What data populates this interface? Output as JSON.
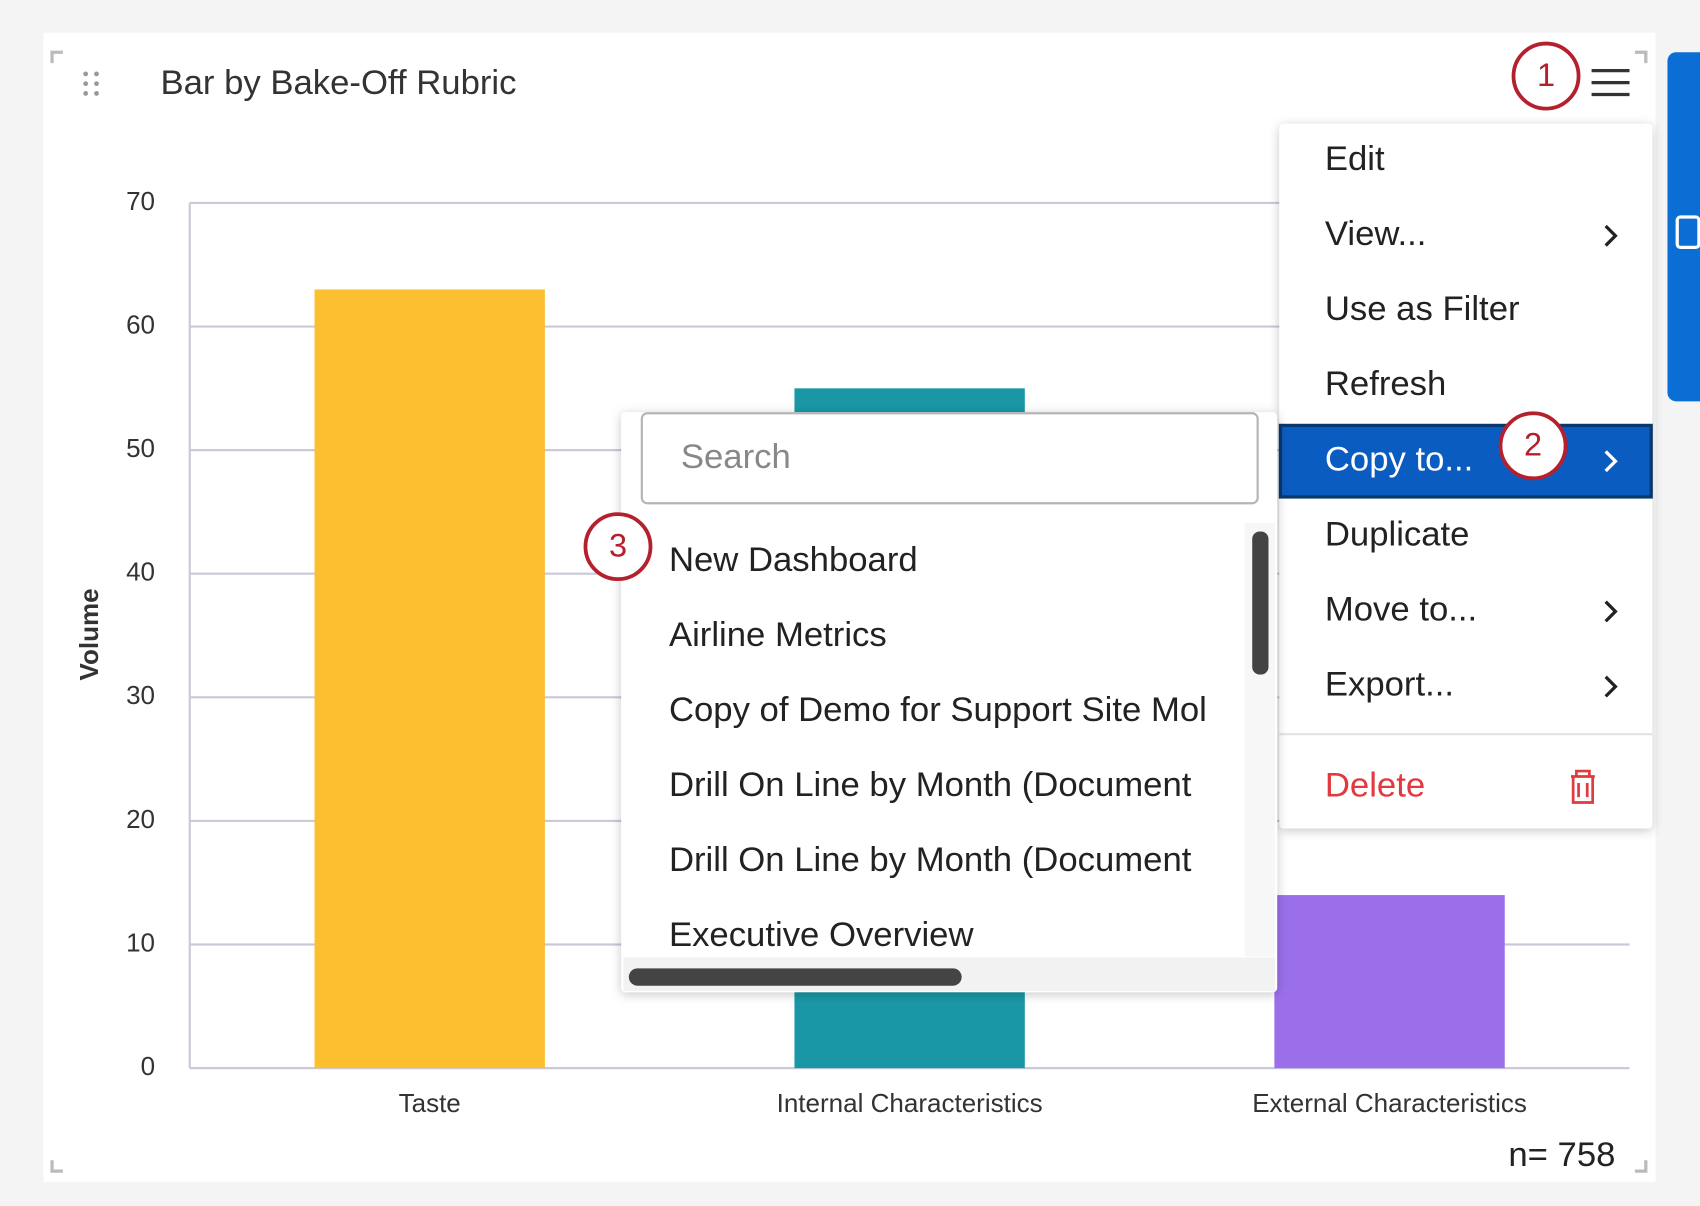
{
  "widget": {
    "title": "Bar by Bake-Off Rubric",
    "n_label": "n= 758"
  },
  "chart_data": {
    "type": "bar",
    "y_label": "Volume",
    "categories": [
      "Taste",
      "Internal Characteristics",
      "External Characteristics"
    ],
    "values": [
      63,
      55,
      14
    ],
    "colors": [
      "#fbbf2f",
      "#1a97a6",
      "#9b6fea"
    ],
    "ylim": [
      0,
      70
    ],
    "yticks": [
      0,
      10,
      20,
      30,
      40,
      50,
      60,
      70
    ],
    "grid": true
  },
  "menu": {
    "items": [
      "Edit",
      "View...",
      "Use as Filter",
      "Refresh",
      "Copy to...",
      "Duplicate",
      "Move to...",
      "Export..."
    ],
    "delete": "Delete"
  },
  "copy_submenu": {
    "search_placeholder": "Search",
    "items": [
      "New Dashboard",
      "Airline Metrics",
      "Copy of Demo for Support Site Mol",
      "Drill On Line by Month (Document",
      "Drill On Line by Month (Document",
      "Executive Overview"
    ]
  },
  "annotations": [
    1,
    2,
    3
  ]
}
